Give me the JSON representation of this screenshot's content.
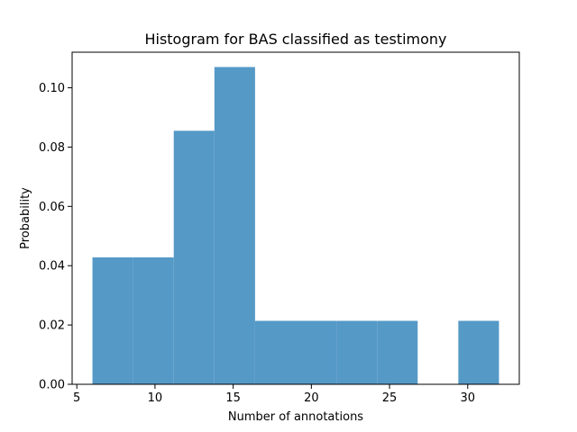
{
  "chart_data": {
    "type": "bar",
    "title": "Histogram for BAS classified as testimony",
    "xlabel": "Number of annotations",
    "ylabel": "Probability",
    "xlim": [
      4.7,
      33.3
    ],
    "ylim": [
      0,
      0.112
    ],
    "xticks": [
      5,
      10,
      15,
      20,
      25,
      30
    ],
    "yticks": [
      0.0,
      0.02,
      0.04,
      0.06,
      0.08,
      0.1
    ],
    "ytick_labels": [
      "0.00",
      "0.02",
      "0.04",
      "0.06",
      "0.08",
      "0.10"
    ],
    "bins": [
      {
        "x0": 6.0,
        "x1": 8.6,
        "value": 0.0428
      },
      {
        "x0": 8.6,
        "x1": 11.2,
        "value": 0.0428
      },
      {
        "x0": 11.2,
        "x1": 13.8,
        "value": 0.0855
      },
      {
        "x0": 13.8,
        "x1": 16.4,
        "value": 0.107
      },
      {
        "x0": 16.4,
        "x1": 19.0,
        "value": 0.0214
      },
      {
        "x0": 19.0,
        "x1": 21.6,
        "value": 0.0214
      },
      {
        "x0": 21.6,
        "x1": 24.2,
        "value": 0.0214
      },
      {
        "x0": 24.2,
        "x1": 26.8,
        "value": 0.0214
      },
      {
        "x0": 26.8,
        "x1": 29.4,
        "value": 0.0
      },
      {
        "x0": 29.4,
        "x1": 32.0,
        "value": 0.0214
      }
    ],
    "bar_color": "#5599c7",
    "grid": false,
    "legend": false
  }
}
